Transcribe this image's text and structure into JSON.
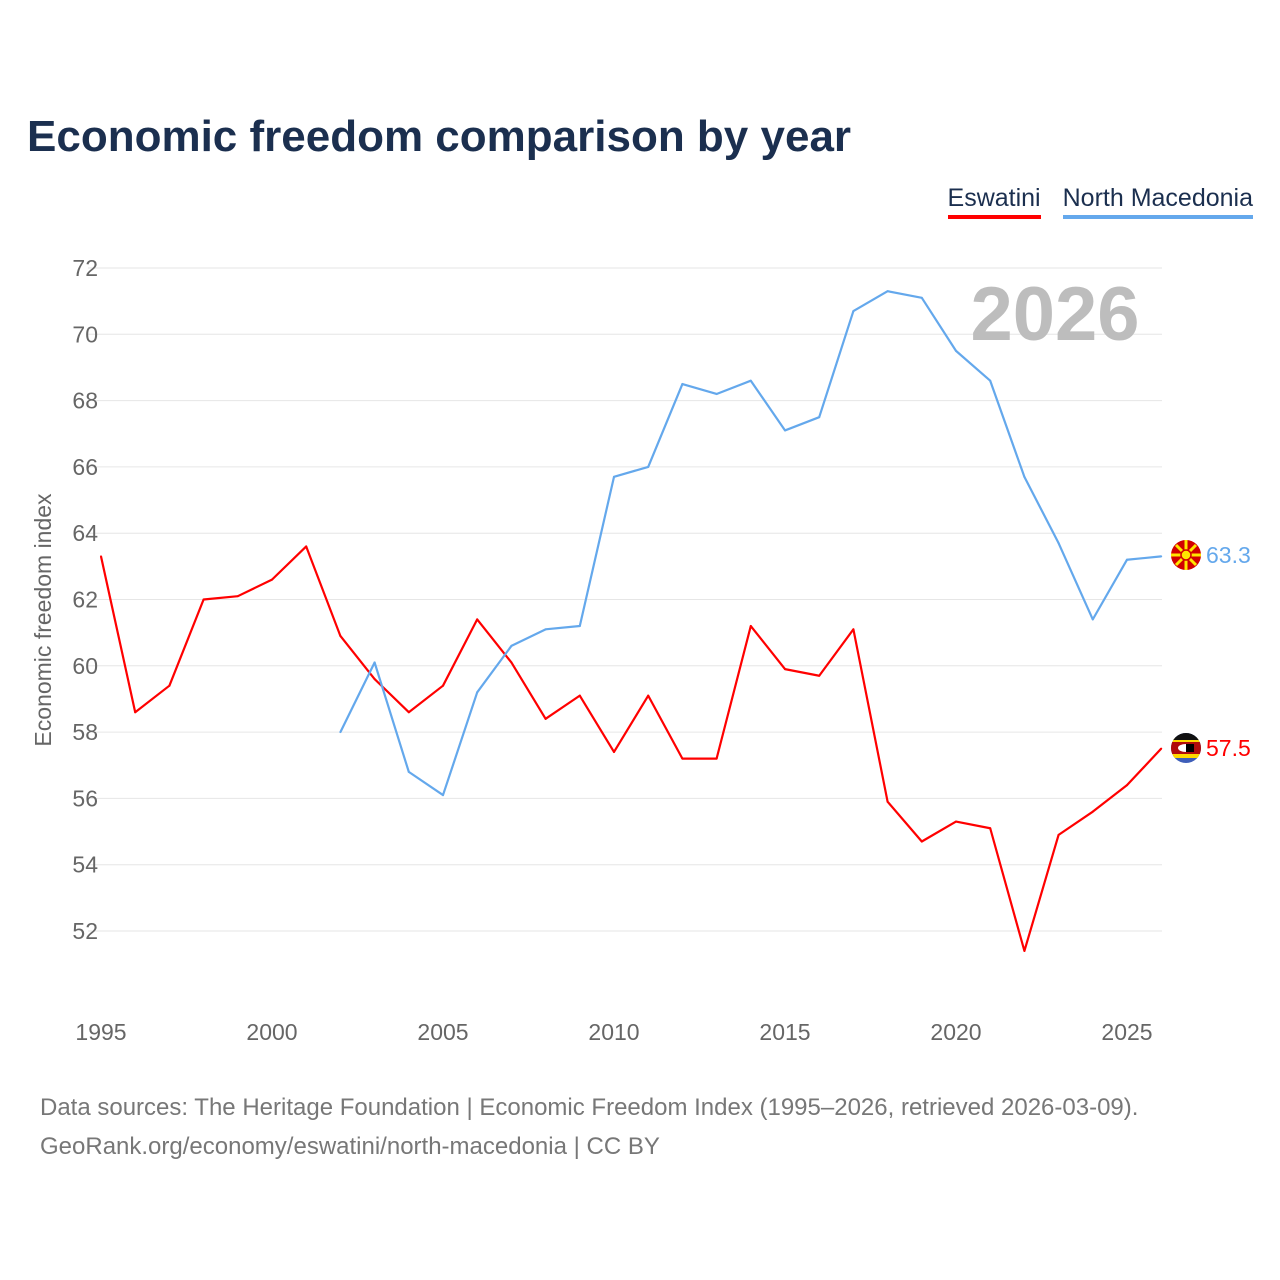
{
  "title": "Economic freedom comparison by year",
  "year_badge": "2026",
  "sources": {
    "line1": "Data sources: The Heritage Foundation | Economic Freedom Index (1995–2026, retrieved 2026-03-09).",
    "line2": "GeoRank.org/economy/eswatini/north-macedonia | CC BY"
  },
  "chart_data": {
    "type": "line",
    "title": "Economic freedom comparison by year",
    "ylabel": "Economic freedom index",
    "xlabel": "",
    "ylim": [
      50,
      72
    ],
    "xlim": [
      1995,
      2026
    ],
    "yticks": [
      52,
      54,
      56,
      58,
      60,
      62,
      64,
      66,
      68,
      70,
      72
    ],
    "xticks": [
      1995,
      2000,
      2005,
      2010,
      2015,
      2020,
      2025
    ],
    "grid": true,
    "legend": "top-right",
    "series": [
      {
        "name": "Eswatini",
        "color": "#ff0000",
        "end_label": "57.5",
        "x": [
          1995,
          1996,
          1997,
          1998,
          1999,
          2000,
          2001,
          2002,
          2003,
          2004,
          2005,
          2006,
          2007,
          2008,
          2009,
          2010,
          2011,
          2012,
          2013,
          2014,
          2015,
          2016,
          2017,
          2018,
          2019,
          2020,
          2021,
          2022,
          2023,
          2024,
          2025,
          2026
        ],
        "values": [
          63.3,
          58.6,
          59.4,
          62.0,
          62.1,
          62.6,
          63.6,
          60.9,
          59.6,
          58.6,
          59.4,
          61.4,
          60.1,
          58.4,
          59.1,
          57.4,
          59.1,
          57.2,
          57.2,
          61.2,
          59.9,
          59.7,
          61.1,
          55.9,
          54.7,
          55.3,
          55.1,
          51.4,
          54.9,
          55.6,
          56.4,
          57.5
        ]
      },
      {
        "name": "North Macedonia",
        "color": "#64a8ec",
        "end_label": "63.3",
        "x": [
          2002,
          2003,
          2004,
          2005,
          2006,
          2007,
          2008,
          2009,
          2010,
          2011,
          2012,
          2013,
          2014,
          2015,
          2016,
          2017,
          2018,
          2019,
          2020,
          2021,
          2022,
          2023,
          2024,
          2025,
          2026
        ],
        "values": [
          58.0,
          60.1,
          56.8,
          56.1,
          59.2,
          60.6,
          61.1,
          61.2,
          65.7,
          66.0,
          68.5,
          68.2,
          68.6,
          67.1,
          67.5,
          70.7,
          71.3,
          71.1,
          69.5,
          68.6,
          65.7,
          63.7,
          61.4,
          63.2,
          63.3
        ]
      }
    ]
  }
}
